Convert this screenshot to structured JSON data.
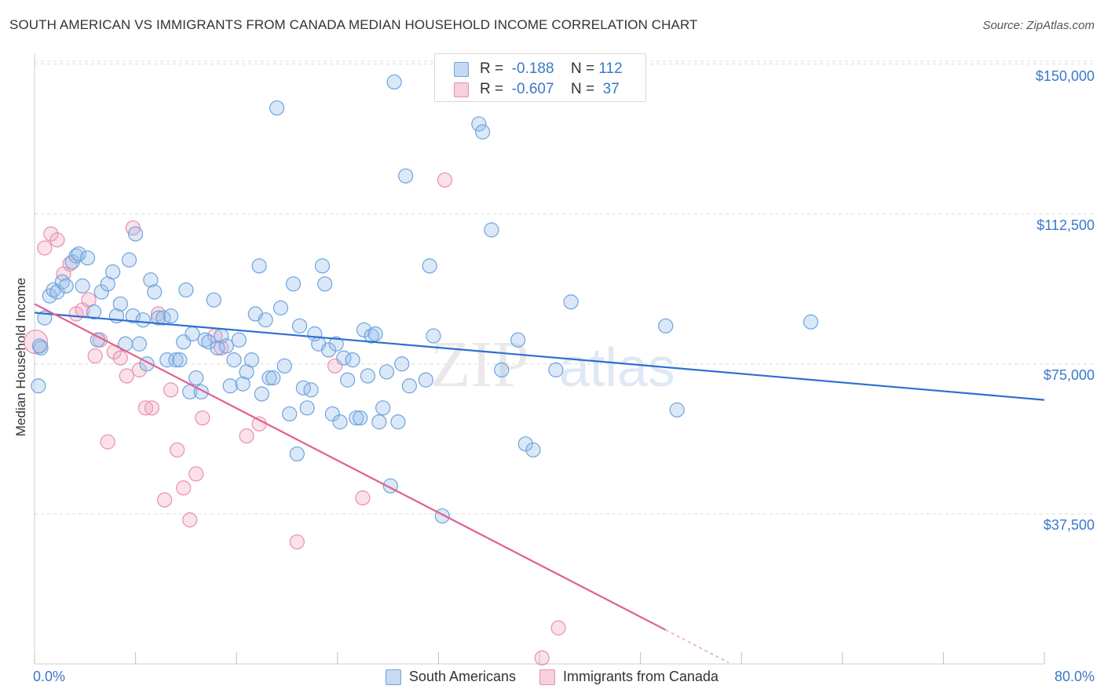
{
  "chart_data": {
    "type": "scatter",
    "title": "SOUTH AMERICAN VS IMMIGRANTS FROM CANADA MEDIAN HOUSEHOLD INCOME CORRELATION CHART",
    "source": "Source: ZipAtlas.com",
    "ylabel": "Median Household Income",
    "xlim": [
      0,
      80
    ],
    "ylim": [
      0,
      155000
    ],
    "x_tick_labels": [
      "0.0%",
      "80.0%"
    ],
    "y_ticks": [
      {
        "value": 37500,
        "label": "$37,500"
      },
      {
        "value": 75000,
        "label": "$75,000"
      },
      {
        "value": 112500,
        "label": "$112,500"
      },
      {
        "value": 150000,
        "label": "$150,000"
      }
    ],
    "watermark": {
      "part1": "ZIP",
      "part2": "atlas"
    },
    "legend_stats": [
      {
        "r_label": "R =",
        "r_value": "-0.188",
        "n_label": "N =",
        "n_value": "112"
      },
      {
        "r_label": "R =",
        "r_value": "-0.607",
        "n_label": "N =",
        "n_value": "37"
      }
    ],
    "series": [
      {
        "name": "South Americans",
        "color": "#6fa3dd",
        "fill": "rgba(150,190,235,0.35)",
        "line_color": "#2f6fd0",
        "trend": {
          "x0": 0,
          "y0": 87800,
          "x1": 80,
          "y1": 66000
        },
        "points": [
          {
            "x": 0.3,
            "y": 69500
          },
          {
            "x": 0.5,
            "y": 79000
          },
          {
            "x": 0.8,
            "y": 86500
          },
          {
            "x": 1.2,
            "y": 92000
          },
          {
            "x": 1.5,
            "y": 93500
          },
          {
            "x": 1.8,
            "y": 93000
          },
          {
            "x": 2.2,
            "y": 95500
          },
          {
            "x": 2.5,
            "y": 94500
          },
          {
            "x": 3.0,
            "y": 100500
          },
          {
            "x": 3.3,
            "y": 102000
          },
          {
            "x": 3.5,
            "y": 102500
          },
          {
            "x": 3.8,
            "y": 94500
          },
          {
            "x": 4.2,
            "y": 101500
          },
          {
            "x": 4.7,
            "y": 88000
          },
          {
            "x": 5.0,
            "y": 81000
          },
          {
            "x": 5.3,
            "y": 93000
          },
          {
            "x": 5.8,
            "y": 95000
          },
          {
            "x": 6.2,
            "y": 98000
          },
          {
            "x": 6.5,
            "y": 87000
          },
          {
            "x": 6.8,
            "y": 90000
          },
          {
            "x": 7.2,
            "y": 80000
          },
          {
            "x": 7.5,
            "y": 101000
          },
          {
            "x": 7.8,
            "y": 87000
          },
          {
            "x": 8.0,
            "y": 107500
          },
          {
            "x": 8.3,
            "y": 80000
          },
          {
            "x": 8.6,
            "y": 86000
          },
          {
            "x": 8.9,
            "y": 75000
          },
          {
            "x": 9.2,
            "y": 96000
          },
          {
            "x": 9.5,
            "y": 93000
          },
          {
            "x": 9.8,
            "y": 86500
          },
          {
            "x": 10.2,
            "y": 86500
          },
          {
            "x": 10.5,
            "y": 76000
          },
          {
            "x": 10.8,
            "y": 87000
          },
          {
            "x": 11.2,
            "y": 76000
          },
          {
            "x": 11.5,
            "y": 76000
          },
          {
            "x": 11.8,
            "y": 80500
          },
          {
            "x": 12.0,
            "y": 93500
          },
          {
            "x": 12.3,
            "y": 68000
          },
          {
            "x": 12.5,
            "y": 82500
          },
          {
            "x": 12.8,
            "y": 71500
          },
          {
            "x": 13.2,
            "y": 68000
          },
          {
            "x": 13.5,
            "y": 81000
          },
          {
            "x": 13.8,
            "y": 80500
          },
          {
            "x": 14.2,
            "y": 91000
          },
          {
            "x": 14.5,
            "y": 79000
          },
          {
            "x": 14.8,
            "y": 82000
          },
          {
            "x": 15.2,
            "y": 79500
          },
          {
            "x": 15.5,
            "y": 69500
          },
          {
            "x": 15.8,
            "y": 76000
          },
          {
            "x": 16.2,
            "y": 81000
          },
          {
            "x": 16.5,
            "y": 70000
          },
          {
            "x": 16.8,
            "y": 73000
          },
          {
            "x": 17.2,
            "y": 76000
          },
          {
            "x": 17.5,
            "y": 87500
          },
          {
            "x": 17.8,
            "y": 99500
          },
          {
            "x": 18.0,
            "y": 67500
          },
          {
            "x": 18.3,
            "y": 86000
          },
          {
            "x": 18.6,
            "y": 71500
          },
          {
            "x": 18.9,
            "y": 71500
          },
          {
            "x": 19.2,
            "y": 139000
          },
          {
            "x": 19.5,
            "y": 89000
          },
          {
            "x": 19.8,
            "y": 74500
          },
          {
            "x": 20.2,
            "y": 62500
          },
          {
            "x": 20.5,
            "y": 95000
          },
          {
            "x": 20.8,
            "y": 52500
          },
          {
            "x": 21.0,
            "y": 84500
          },
          {
            "x": 21.3,
            "y": 69000
          },
          {
            "x": 21.6,
            "y": 64000
          },
          {
            "x": 21.9,
            "y": 68500
          },
          {
            "x": 22.2,
            "y": 82500
          },
          {
            "x": 22.5,
            "y": 80000
          },
          {
            "x": 22.8,
            "y": 99500
          },
          {
            "x": 23.0,
            "y": 95000
          },
          {
            "x": 23.3,
            "y": 78500
          },
          {
            "x": 23.6,
            "y": 62500
          },
          {
            "x": 23.9,
            "y": 80000
          },
          {
            "x": 24.2,
            "y": 60500
          },
          {
            "x": 24.5,
            "y": 76500
          },
          {
            "x": 24.8,
            "y": 71000
          },
          {
            "x": 25.2,
            "y": 76000
          },
          {
            "x": 25.5,
            "y": 61500
          },
          {
            "x": 25.8,
            "y": 61500
          },
          {
            "x": 26.1,
            "y": 83500
          },
          {
            "x": 26.4,
            "y": 72000
          },
          {
            "x": 26.7,
            "y": 82000
          },
          {
            "x": 27.0,
            "y": 82500
          },
          {
            "x": 27.3,
            "y": 60500
          },
          {
            "x": 27.6,
            "y": 64000
          },
          {
            "x": 27.9,
            "y": 73000
          },
          {
            "x": 28.2,
            "y": 44500
          },
          {
            "x": 28.5,
            "y": 145500
          },
          {
            "x": 28.8,
            "y": 60500
          },
          {
            "x": 29.1,
            "y": 75000
          },
          {
            "x": 29.4,
            "y": 122000
          },
          {
            "x": 29.7,
            "y": 69500
          },
          {
            "x": 31.0,
            "y": 71000
          },
          {
            "x": 31.3,
            "y": 99500
          },
          {
            "x": 31.6,
            "y": 82000
          },
          {
            "x": 32.3,
            "y": 37000
          },
          {
            "x": 35.2,
            "y": 135000
          },
          {
            "x": 35.5,
            "y": 133000
          },
          {
            "x": 36.2,
            "y": 108500
          },
          {
            "x": 37.0,
            "y": 73500
          },
          {
            "x": 38.3,
            "y": 81000
          },
          {
            "x": 38.9,
            "y": 55000
          },
          {
            "x": 39.5,
            "y": 53500
          },
          {
            "x": 41.3,
            "y": 73500
          },
          {
            "x": 42.5,
            "y": 90500
          },
          {
            "x": 50.0,
            "y": 84500
          },
          {
            "x": 50.9,
            "y": 63500
          },
          {
            "x": 61.5,
            "y": 85500
          },
          {
            "x": 0.4,
            "y": 79500
          }
        ]
      },
      {
        "name": "Immigrants from Canada",
        "color": "#e890ae",
        "fill": "rgba(240,170,195,0.35)",
        "line_color": "#e0608f",
        "trend": {
          "x0": 0,
          "y0": 90000,
          "x1": 50,
          "y1": 8500
        },
        "trend_dashed_to": {
          "x": 55,
          "y": 300
        },
        "points": [
          {
            "x": 0.1,
            "y": 80500
          },
          {
            "x": 0.8,
            "y": 104000
          },
          {
            "x": 1.3,
            "y": 107500
          },
          {
            "x": 1.8,
            "y": 106000
          },
          {
            "x": 2.3,
            "y": 97500
          },
          {
            "x": 2.8,
            "y": 100000
          },
          {
            "x": 3.3,
            "y": 87500
          },
          {
            "x": 3.8,
            "y": 88500
          },
          {
            "x": 4.3,
            "y": 91000
          },
          {
            "x": 4.8,
            "y": 77000
          },
          {
            "x": 5.2,
            "y": 81000
          },
          {
            "x": 5.8,
            "y": 55500
          },
          {
            "x": 6.3,
            "y": 78000
          },
          {
            "x": 6.8,
            "y": 76500
          },
          {
            "x": 7.3,
            "y": 72000
          },
          {
            "x": 7.8,
            "y": 109000
          },
          {
            "x": 8.3,
            "y": 73500
          },
          {
            "x": 8.8,
            "y": 64000
          },
          {
            "x": 9.3,
            "y": 64000
          },
          {
            "x": 9.8,
            "y": 87500
          },
          {
            "x": 10.3,
            "y": 41000
          },
          {
            "x": 10.8,
            "y": 68500
          },
          {
            "x": 11.3,
            "y": 53500
          },
          {
            "x": 11.8,
            "y": 44000
          },
          {
            "x": 12.3,
            "y": 36000
          },
          {
            "x": 12.8,
            "y": 47500
          },
          {
            "x": 13.3,
            "y": 61500
          },
          {
            "x": 14.3,
            "y": 82000
          },
          {
            "x": 14.8,
            "y": 79000
          },
          {
            "x": 16.8,
            "y": 57000
          },
          {
            "x": 17.8,
            "y": 60000
          },
          {
            "x": 20.8,
            "y": 30500
          },
          {
            "x": 23.8,
            "y": 74500
          },
          {
            "x": 26.0,
            "y": 41500
          },
          {
            "x": 32.5,
            "y": 121000
          },
          {
            "x": 40.2,
            "y": 1500
          },
          {
            "x": 41.5,
            "y": 9000
          }
        ]
      }
    ]
  }
}
